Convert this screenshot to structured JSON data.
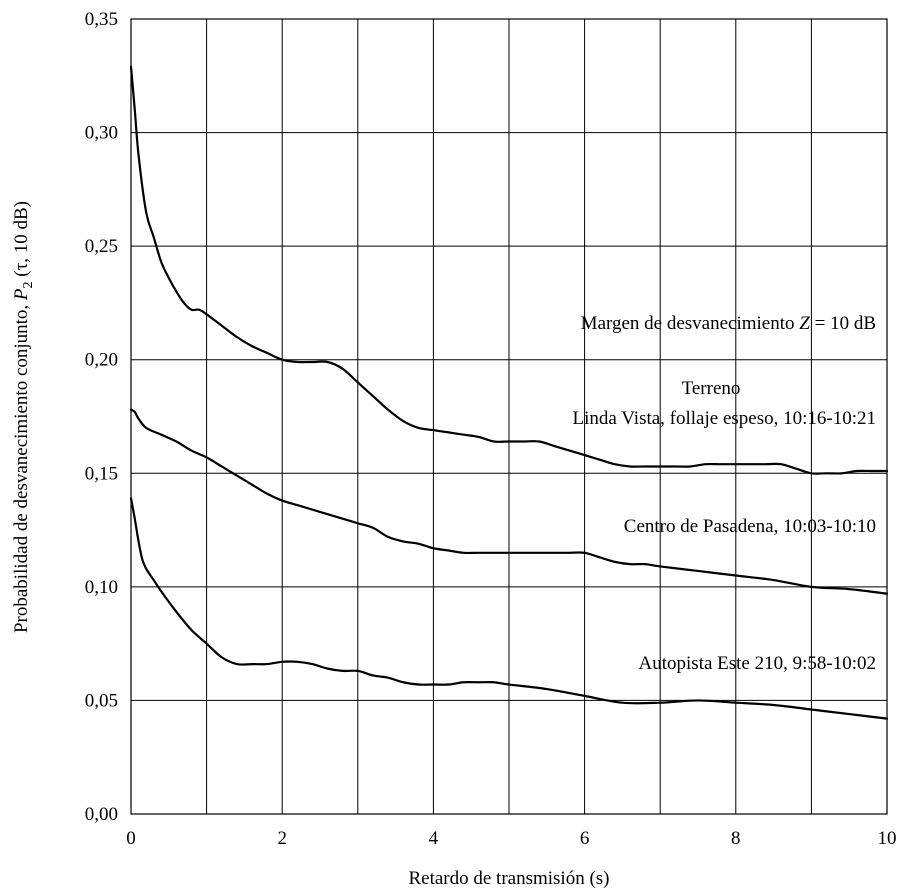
{
  "chart_data": {
    "type": "line",
    "xlabel": "Retardo de transmisión (s)",
    "ylabel": {
      "prefix": "Probabilidad de desvanecimiento conjunto, ",
      "symbol": "P",
      "subscript": "2",
      "suffix": " (τ, 10 dB)"
    },
    "xlim": [
      0,
      10
    ],
    "ylim": [
      0,
      0.35
    ],
    "x_ticks": [
      0,
      2,
      4,
      6,
      8,
      10
    ],
    "x_tick_labels": [
      "0",
      "2",
      "4",
      "6",
      "8",
      "10"
    ],
    "y_ticks": [
      0,
      0.05,
      0.1,
      0.15,
      0.2,
      0.25,
      0.3,
      0.35
    ],
    "y_tick_labels": [
      "0,00",
      "0,05",
      "0,10",
      "0,15",
      "0,20",
      "0,25",
      "0,30",
      "0,35"
    ],
    "x_grid_step": 1,
    "y_grid_step": 0.05,
    "grid": true,
    "annotations": {
      "margin": {
        "prefix": "Margen de desvanecimiento ",
        "symbol": "Z",
        "suffix": " = 10 dB"
      },
      "terrain_header": "Terreno"
    },
    "series": [
      {
        "name": "Linda Vista, follaje espeso, 10:16-10:21",
        "x": [
          0,
          0.05,
          0.1,
          0.2,
          0.3,
          0.4,
          0.5,
          0.6,
          0.7,
          0.8,
          0.9,
          1.0,
          1.2,
          1.4,
          1.6,
          1.8,
          2.0,
          2.2,
          2.4,
          2.6,
          2.8,
          3.0,
          3.2,
          3.4,
          3.6,
          3.8,
          4.0,
          4.2,
          4.4,
          4.6,
          4.8,
          5.0,
          5.2,
          5.4,
          5.6,
          5.8,
          6.0,
          6.2,
          6.4,
          6.6,
          6.8,
          7.0,
          7.2,
          7.4,
          7.6,
          7.8,
          8.0,
          8.2,
          8.4,
          8.6,
          8.8,
          9.0,
          9.2,
          9.4,
          9.6,
          9.8,
          10.0
        ],
        "y": [
          0.329,
          0.31,
          0.29,
          0.265,
          0.254,
          0.243,
          0.236,
          0.23,
          0.225,
          0.222,
          0.222,
          0.22,
          0.215,
          0.21,
          0.206,
          0.203,
          0.2,
          0.199,
          0.199,
          0.199,
          0.196,
          0.19,
          0.184,
          0.178,
          0.173,
          0.17,
          0.169,
          0.168,
          0.167,
          0.166,
          0.164,
          0.164,
          0.164,
          0.164,
          0.162,
          0.16,
          0.158,
          0.156,
          0.154,
          0.153,
          0.153,
          0.153,
          0.153,
          0.153,
          0.154,
          0.154,
          0.154,
          0.154,
          0.154,
          0.154,
          0.152,
          0.15,
          0.15,
          0.15,
          0.151,
          0.151,
          0.151
        ]
      },
      {
        "name": "Centro de Pasadena, 10:03-10:10",
        "x": [
          0,
          0.05,
          0.1,
          0.2,
          0.4,
          0.6,
          0.8,
          1.0,
          1.2,
          1.4,
          1.6,
          1.8,
          2.0,
          2.2,
          2.4,
          2.6,
          2.8,
          3.0,
          3.2,
          3.4,
          3.6,
          3.8,
          4.0,
          4.2,
          4.4,
          4.6,
          4.8,
          5.0,
          5.2,
          5.4,
          5.6,
          5.8,
          6.0,
          6.2,
          6.4,
          6.6,
          6.8,
          7.0,
          7.5,
          8.0,
          8.5,
          9.0,
          9.5,
          10.0
        ],
        "y": [
          0.178,
          0.177,
          0.174,
          0.17,
          0.167,
          0.164,
          0.16,
          0.157,
          0.153,
          0.149,
          0.145,
          0.141,
          0.138,
          0.136,
          0.134,
          0.132,
          0.13,
          0.128,
          0.126,
          0.122,
          0.12,
          0.119,
          0.117,
          0.116,
          0.115,
          0.115,
          0.115,
          0.115,
          0.115,
          0.115,
          0.115,
          0.115,
          0.115,
          0.113,
          0.111,
          0.11,
          0.11,
          0.109,
          0.107,
          0.105,
          0.103,
          0.1,
          0.099,
          0.097
        ]
      },
      {
        "name": "Autopista Este 210, 9:58-10:02",
        "x": [
          0,
          0.05,
          0.1,
          0.15,
          0.2,
          0.3,
          0.4,
          0.6,
          0.8,
          1.0,
          1.2,
          1.4,
          1.6,
          1.8,
          2.0,
          2.2,
          2.4,
          2.6,
          2.8,
          3.0,
          3.2,
          3.4,
          3.6,
          3.8,
          4.0,
          4.2,
          4.4,
          4.6,
          4.8,
          5.0,
          5.5,
          6.0,
          6.5,
          7.0,
          7.5,
          8.0,
          8.5,
          9.0,
          9.5,
          10.0
        ],
        "y": [
          0.139,
          0.13,
          0.12,
          0.112,
          0.108,
          0.103,
          0.098,
          0.089,
          0.081,
          0.075,
          0.069,
          0.066,
          0.066,
          0.066,
          0.067,
          0.067,
          0.066,
          0.064,
          0.063,
          0.063,
          0.061,
          0.06,
          0.058,
          0.057,
          0.057,
          0.057,
          0.058,
          0.058,
          0.058,
          0.057,
          0.055,
          0.052,
          0.049,
          0.049,
          0.05,
          0.049,
          0.048,
          0.046,
          0.044,
          0.042
        ]
      }
    ]
  }
}
